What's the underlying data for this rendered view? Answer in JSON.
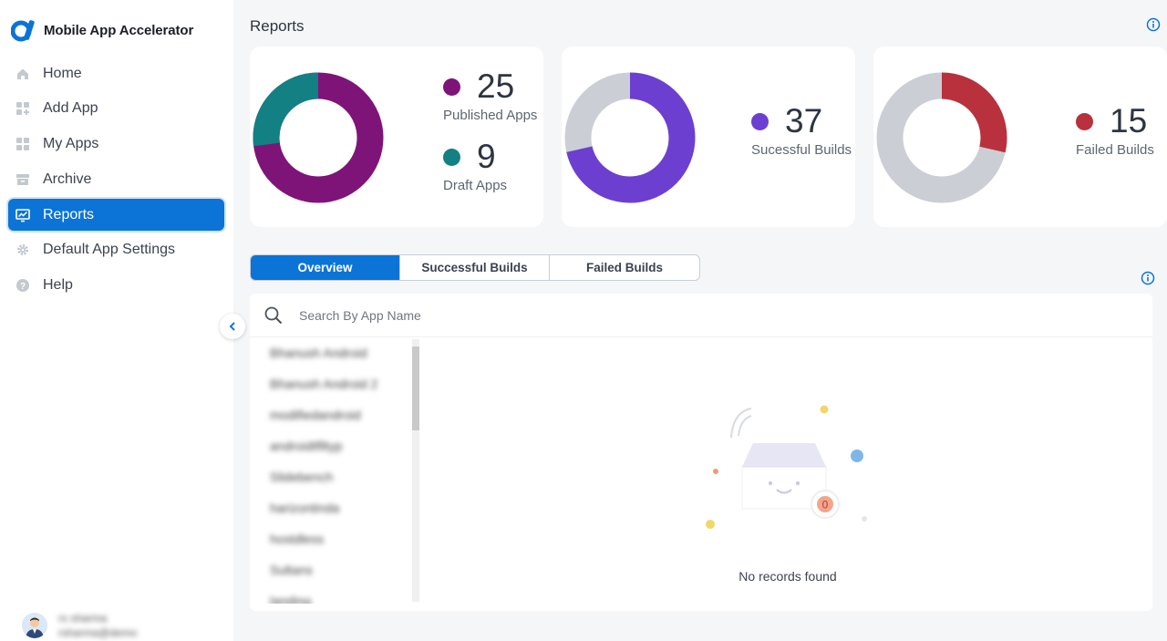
{
  "app": {
    "name": "Mobile App Accelerator"
  },
  "sidebar": {
    "items": [
      {
        "label": "Home",
        "icon": "home-icon"
      },
      {
        "label": "Add App",
        "icon": "add-app-icon"
      },
      {
        "label": "My Apps",
        "icon": "apps-grid-icon"
      },
      {
        "label": "Archive",
        "icon": "archive-icon"
      },
      {
        "label": "Reports",
        "icon": "reports-icon",
        "active": true
      },
      {
        "label": "Default App Settings",
        "icon": "gear-icon"
      },
      {
        "label": "Help",
        "icon": "help-icon"
      }
    ],
    "user": {
      "name": "rs sharma",
      "email": "rsharma@demo"
    }
  },
  "page": {
    "title": "Reports"
  },
  "cards": [
    {
      "stats": [
        {
          "value": "25",
          "label": "Published Apps",
          "color": "#7e1478"
        },
        {
          "value": "9",
          "label": "Draft Apps",
          "color": "#138084"
        }
      ]
    },
    {
      "stats": [
        {
          "value": "37",
          "label": "Sucessful Builds",
          "color": "#6c3fd1"
        }
      ]
    },
    {
      "stats": [
        {
          "value": "15",
          "label": "Failed Builds",
          "color": "#b8313c"
        }
      ]
    }
  ],
  "colors": {
    "accent": "#0b74d6",
    "neutral_ring": "#cbcfd5",
    "published": "#7e1478",
    "draft": "#138084",
    "success": "#6c3fd1",
    "failed": "#b8313c"
  },
  "tabs": [
    {
      "label": "Overview",
      "active": true
    },
    {
      "label": "Successful Builds"
    },
    {
      "label": "Failed Builds"
    }
  ],
  "search": {
    "placeholder": "Search By App Name"
  },
  "app_list": [
    "Bhanush Android",
    "Bhanush Android 2",
    "modifiedandroid",
    "androidtflltyp",
    "Slidebench",
    "harizontinda",
    "hostdless",
    "Sultans",
    "landing"
  ],
  "empty_state": {
    "badge": "0",
    "message": "No records found"
  }
}
